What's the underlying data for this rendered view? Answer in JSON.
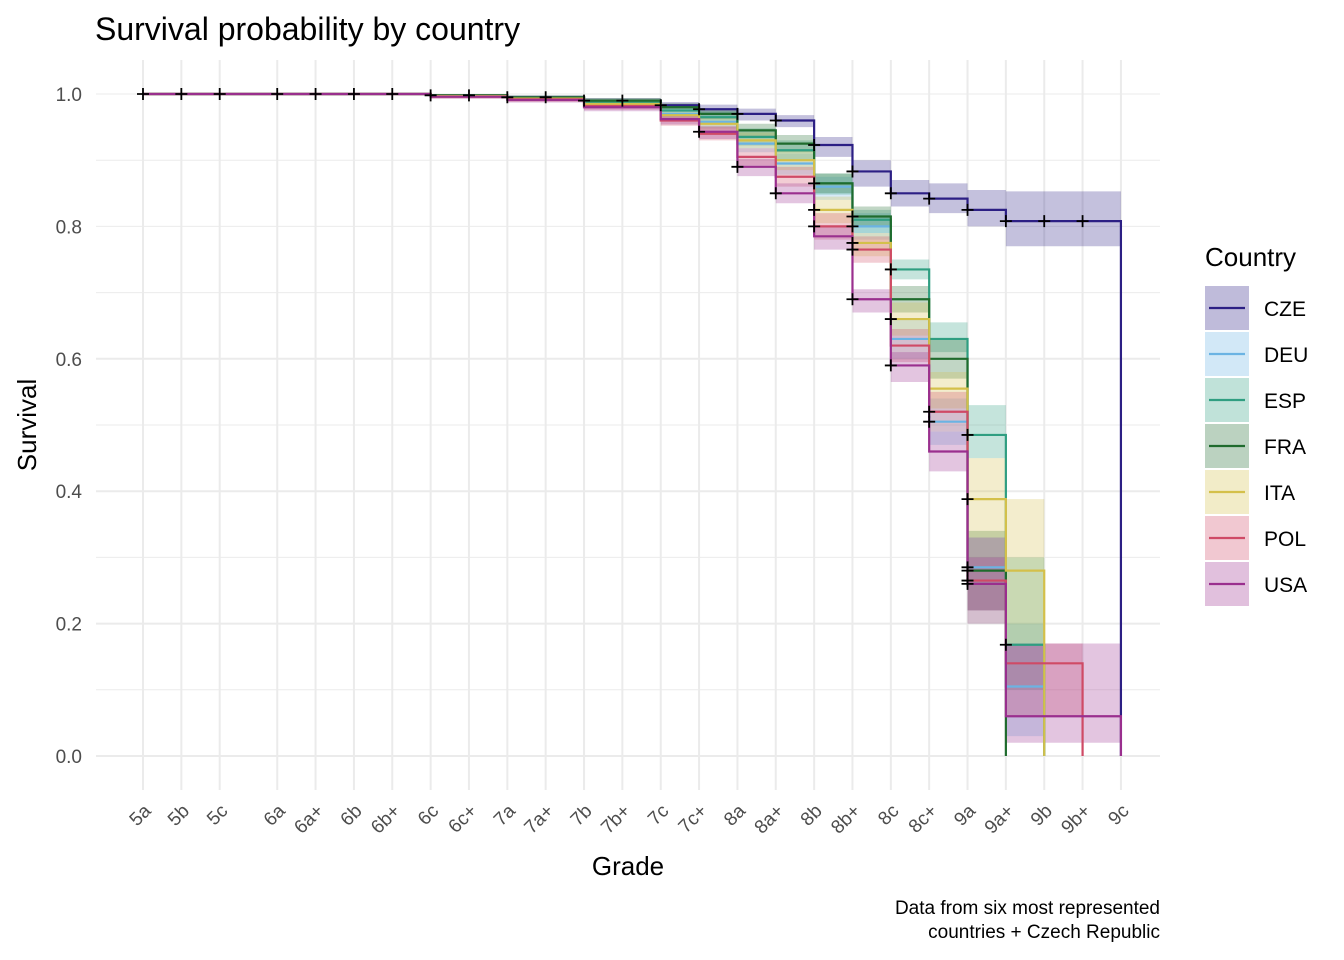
{
  "chart_data": {
    "type": "line",
    "title": "Survival probability by country",
    "xlabel": "Grade",
    "ylabel": "Survival",
    "caption_lines": [
      "Data from six most represented",
      "countries + Czech Republic"
    ],
    "legend_title": "Country",
    "legend_position": "right",
    "grid": true,
    "ylim": [
      0,
      1
    ],
    "y_ticks": [
      "0.0",
      "0.2",
      "0.4",
      "0.6",
      "0.8",
      "1.0"
    ],
    "grades": [
      "5a",
      "5b",
      "5c",
      "6a",
      "6a+",
      "6b",
      "6b+",
      "6c",
      "6c+",
      "7a",
      "7a+",
      "7b",
      "7b+",
      "7c",
      "7c+",
      "8a",
      "8a+",
      "8b",
      "8b+",
      "8c",
      "8c+",
      "9a",
      "9a+",
      "9b",
      "9b+",
      "9c"
    ],
    "grade_positions": [
      1,
      2,
      3,
      4.5,
      5.5,
      6.5,
      7.5,
      8.5,
      9.5,
      10.5,
      11.5,
      12.5,
      13.5,
      14.5,
      15.5,
      16.5,
      17.5,
      18.5,
      19.5,
      20.5,
      21.5,
      22.5,
      23.5,
      24.5,
      25.5,
      26.5
    ],
    "series": [
      {
        "name": "CZE",
        "color": "#2c1f84",
        "steps": [
          [
            1,
            1.0
          ],
          [
            8.5,
            0.998
          ],
          [
            10.5,
            0.995
          ],
          [
            12.5,
            0.99
          ],
          [
            14.5,
            0.983
          ],
          [
            15.5,
            0.977
          ],
          [
            16.5,
            0.97
          ],
          [
            17.5,
            0.96
          ],
          [
            18.5,
            0.923
          ],
          [
            19.5,
            0.883
          ],
          [
            20.5,
            0.85
          ],
          [
            21.5,
            0.842
          ],
          [
            22.5,
            0.825
          ],
          [
            23.5,
            0.808
          ],
          [
            26.5,
            0.0
          ]
        ],
        "lower": [
          1.0,
          0.996,
          0.992,
          0.986,
          0.978,
          0.97,
          0.96,
          0.95,
          0.905,
          0.86,
          0.83,
          0.82,
          0.8,
          0.77,
          0.77
        ],
        "upper": [
          1.0,
          1.0,
          0.998,
          0.994,
          0.988,
          0.984,
          0.978,
          0.968,
          0.935,
          0.9,
          0.87,
          0.865,
          0.855,
          0.853,
          0.853
        ],
        "censor": [
          1,
          2,
          3,
          4.5,
          5.5,
          6.5,
          7.5,
          8.5,
          9.5,
          10.5,
          11.5,
          12.5,
          13.5,
          14.5,
          15.5,
          16.5,
          17.5,
          18.5,
          19.5,
          20.5,
          21.5,
          22.5,
          23.5,
          24.5,
          25.5
        ]
      },
      {
        "name": "DEU",
        "color": "#6bb3e3",
        "steps": [
          [
            1,
            1.0
          ],
          [
            8.5,
            0.997
          ],
          [
            10.5,
            0.993
          ],
          [
            12.5,
            0.985
          ],
          [
            14.5,
            0.97
          ],
          [
            15.5,
            0.958
          ],
          [
            16.5,
            0.925
          ],
          [
            17.5,
            0.895
          ],
          [
            18.5,
            0.86
          ],
          [
            19.5,
            0.8
          ],
          [
            20.5,
            0.63
          ],
          [
            21.5,
            0.505
          ],
          [
            22.5,
            0.285
          ],
          [
            23.5,
            0.105
          ],
          [
            24.5,
            0.0
          ]
        ],
        "lower": [
          1.0,
          0.994,
          0.99,
          0.98,
          0.962,
          0.948,
          0.912,
          0.878,
          0.84,
          0.78,
          0.6,
          0.47,
          0.2,
          0.03,
          0.0
        ],
        "upper": [
          1.0,
          1.0,
          0.996,
          0.99,
          0.978,
          0.968,
          0.938,
          0.91,
          0.875,
          0.82,
          0.66,
          0.54,
          0.33,
          0.2,
          0.0
        ],
        "censor": [
          19.5,
          21.5,
          22.5
        ]
      },
      {
        "name": "ESP",
        "color": "#2f9e81",
        "steps": [
          [
            1,
            1.0
          ],
          [
            8.5,
            0.998
          ],
          [
            10.5,
            0.994
          ],
          [
            12.5,
            0.988
          ],
          [
            14.5,
            0.975
          ],
          [
            15.5,
            0.965
          ],
          [
            16.5,
            0.935
          ],
          [
            17.5,
            0.915
          ],
          [
            18.5,
            0.865
          ],
          [
            19.5,
            0.81
          ],
          [
            20.5,
            0.735
          ],
          [
            21.5,
            0.63
          ],
          [
            22.5,
            0.485
          ],
          [
            23.5,
            0.168
          ],
          [
            24.5,
            0.0
          ]
        ],
        "lower": [
          1.0,
          0.995,
          0.99,
          0.983,
          0.968,
          0.956,
          0.922,
          0.9,
          0.848,
          0.79,
          0.72,
          0.61,
          0.45,
          0.1,
          0.0
        ],
        "upper": [
          1.0,
          1.0,
          0.997,
          0.992,
          0.982,
          0.974,
          0.948,
          0.93,
          0.88,
          0.825,
          0.75,
          0.655,
          0.53,
          0.3,
          0.0
        ],
        "censor": [
          20.5,
          22.5,
          23.5
        ]
      },
      {
        "name": "FRA",
        "color": "#1f6b2d",
        "steps": [
          [
            1,
            1.0
          ],
          [
            8.5,
            0.998
          ],
          [
            10.5,
            0.995
          ],
          [
            12.5,
            0.99
          ],
          [
            14.5,
            0.98
          ],
          [
            15.5,
            0.97
          ],
          [
            16.5,
            0.945
          ],
          [
            17.5,
            0.925
          ],
          [
            18.5,
            0.865
          ],
          [
            19.5,
            0.815
          ],
          [
            20.5,
            0.69
          ],
          [
            21.5,
            0.6
          ],
          [
            22.5,
            0.28
          ],
          [
            23.5,
            0.0
          ]
        ],
        "lower": [
          1.0,
          0.996,
          0.992,
          0.985,
          0.974,
          0.962,
          0.935,
          0.912,
          0.85,
          0.8,
          0.67,
          0.57,
          0.22,
          0.0
        ],
        "upper": [
          1.0,
          1.0,
          0.998,
          0.994,
          0.986,
          0.978,
          0.955,
          0.938,
          0.88,
          0.83,
          0.71,
          0.63,
          0.34,
          0.0
        ],
        "censor": [
          18.5,
          19.5,
          22.5
        ]
      },
      {
        "name": "ITA",
        "color": "#d4c04a",
        "steps": [
          [
            1,
            1.0
          ],
          [
            8.5,
            0.997
          ],
          [
            10.5,
            0.993
          ],
          [
            12.5,
            0.985
          ],
          [
            14.5,
            0.968
          ],
          [
            15.5,
            0.955
          ],
          [
            16.5,
            0.93
          ],
          [
            17.5,
            0.9
          ],
          [
            18.5,
            0.825
          ],
          [
            19.5,
            0.775
          ],
          [
            20.5,
            0.66
          ],
          [
            21.5,
            0.555
          ],
          [
            22.5,
            0.388
          ],
          [
            23.5,
            0.28
          ],
          [
            24.5,
            0.0
          ]
        ],
        "lower": [
          1.0,
          0.994,
          0.99,
          0.98,
          0.96,
          0.946,
          0.918,
          0.885,
          0.805,
          0.755,
          0.635,
          0.525,
          0.33,
          0.17,
          0.0
        ],
        "upper": [
          1.0,
          1.0,
          0.996,
          0.99,
          0.976,
          0.964,
          0.942,
          0.915,
          0.845,
          0.79,
          0.685,
          0.58,
          0.45,
          0.388,
          0.395
        ],
        "censor": [
          18.5,
          19.5,
          20.5,
          22.5
        ]
      },
      {
        "name": "POL",
        "color": "#cf4a66",
        "steps": [
          [
            1,
            1.0
          ],
          [
            8.5,
            0.996
          ],
          [
            10.5,
            0.992
          ],
          [
            12.5,
            0.982
          ],
          [
            14.5,
            0.96
          ],
          [
            15.5,
            0.94
          ],
          [
            16.5,
            0.905
          ],
          [
            17.5,
            0.875
          ],
          [
            18.5,
            0.8
          ],
          [
            19.5,
            0.765
          ],
          [
            20.5,
            0.62
          ],
          [
            21.5,
            0.52
          ],
          [
            22.5,
            0.265
          ],
          [
            23.5,
            0.14
          ],
          [
            25.5,
            0.0
          ]
        ],
        "lower": [
          1.0,
          0.993,
          0.988,
          0.976,
          0.952,
          0.93,
          0.892,
          0.86,
          0.78,
          0.745,
          0.595,
          0.49,
          0.2,
          0.06,
          0.0
        ],
        "upper": [
          1.0,
          1.0,
          0.995,
          0.988,
          0.968,
          0.95,
          0.918,
          0.89,
          0.82,
          0.785,
          0.645,
          0.55,
          0.33,
          0.17,
          0.0
        ],
        "censor": [
          18.5,
          19.5,
          21.5,
          22.5
        ]
      },
      {
        "name": "USA",
        "color": "#9a2f8e",
        "steps": [
          [
            1,
            1.0
          ],
          [
            8.5,
            0.996
          ],
          [
            10.5,
            0.991
          ],
          [
            12.5,
            0.98
          ],
          [
            14.5,
            0.962
          ],
          [
            15.5,
            0.943
          ],
          [
            16.5,
            0.89
          ],
          [
            17.5,
            0.85
          ],
          [
            18.5,
            0.785
          ],
          [
            19.5,
            0.69
          ],
          [
            20.5,
            0.59
          ],
          [
            21.5,
            0.46
          ],
          [
            22.5,
            0.26
          ],
          [
            23.5,
            0.06
          ],
          [
            26.5,
            0.0
          ]
        ],
        "lower": [
          1.0,
          0.993,
          0.987,
          0.974,
          0.954,
          0.932,
          0.876,
          0.835,
          0.765,
          0.67,
          0.565,
          0.43,
          0.22,
          0.02,
          0.02
        ],
        "upper": [
          1.0,
          1.0,
          0.995,
          0.986,
          0.97,
          0.952,
          0.902,
          0.865,
          0.8,
          0.705,
          0.61,
          0.49,
          0.3,
          0.17,
          0.17
        ],
        "censor": [
          15.5,
          16.5,
          17.5,
          19.5,
          20.5,
          22.5
        ]
      }
    ]
  }
}
